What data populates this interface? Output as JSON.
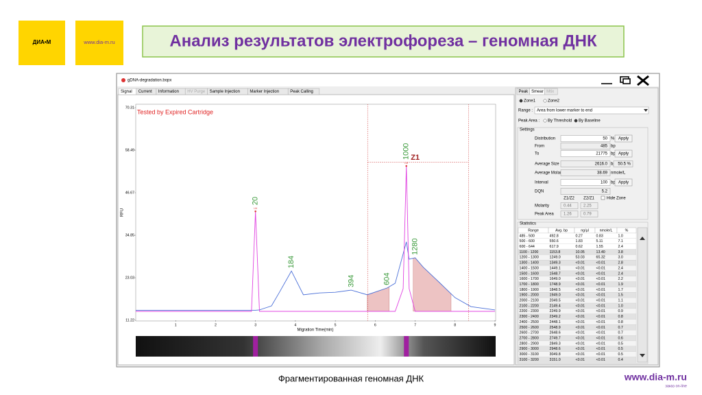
{
  "header": {
    "logo_text": "ДИА•М",
    "logo_url": "www.dia-m.ru",
    "title": "Анализ результатов электрофореза – геномная ДНК"
  },
  "window": {
    "title": "gDNA-degradation.bopx",
    "tabs": [
      "Signal",
      "Current",
      "Information",
      "HV Purge",
      "Sample Injection",
      "Marker Injection",
      "Peak Calling"
    ]
  },
  "chart_data": {
    "type": "line",
    "title": "Tested by Expired Cartridge",
    "x_label": "Migration Time(min)",
    "y_label": "RFU",
    "x": [
      0,
      1,
      2,
      2.9,
      3.0,
      3.1,
      3.4,
      3.6,
      3.9,
      4.2,
      4.6,
      5.0,
      5.4,
      5.8,
      6.3,
      6.5,
      6.7,
      6.78,
      6.85,
      7.0,
      7.2,
      7.6,
      8.0,
      8.4,
      9.0
    ],
    "series": [
      {
        "name": "Sample",
        "color": "#4a6fd8",
        "values": [
          14.0,
          14.0,
          14.0,
          14.0,
          14.0,
          14.1,
          15.2,
          19.0,
          24.9,
          18.3,
          18.8,
          19.0,
          19.6,
          18.3,
          20.2,
          21.5,
          29.7,
          33.0,
          28.2,
          28.6,
          26.0,
          21.8,
          17.5,
          15.0,
          14.1
        ]
      },
      {
        "name": "Marker",
        "color": "#e040e0",
        "values": [
          13.7,
          13.7,
          13.7,
          13.7,
          41.5,
          13.7,
          13.7,
          13.7,
          13.7,
          13.7,
          13.7,
          13.7,
          13.7,
          13.7,
          13.7,
          13.7,
          20.0,
          54.1,
          20.0,
          13.7,
          13.7,
          13.7,
          13.7,
          13.7,
          13.7
        ]
      }
    ],
    "xlim": [
      0,
      9
    ],
    "xticks": [
      1,
      2,
      3,
      4,
      5,
      6,
      7,
      8,
      9
    ],
    "ylim": [
      11.22,
      70.31
    ],
    "yticks": [
      11.22,
      23.03,
      34.85,
      46.67,
      58.49,
      70.31
    ],
    "peaks": [
      {
        "label": "20",
        "x": 3.0,
        "value": 41.5,
        "tag": "LM"
      },
      {
        "label": "184",
        "x": 3.9,
        "value": 24.9
      },
      {
        "label": "394",
        "x": 5.4,
        "value": 19.6
      },
      {
        "label": "604",
        "x": 6.3,
        "value": 20.2
      },
      {
        "label": "1000",
        "x": 6.78,
        "value": 54.1,
        "tag": "LM"
      },
      {
        "label": "1280",
        "x": 7.0,
        "value": 28.6
      }
    ],
    "shaded_ranges": [
      [
        5.8,
        6.35
      ],
      [
        6.95,
        7.9
      ]
    ],
    "zone": {
      "label": "Z1",
      "from": 5.81,
      "to": 8.34,
      "level": 55.2
    }
  },
  "panel": {
    "tabs": [
      "Peak",
      "Smear",
      "Mtix"
    ],
    "zones": [
      "Zone1",
      "Zone2"
    ],
    "range_label": "Range :",
    "range_value": "Area from lower marker to end",
    "peak_area_label": "Peak Area :",
    "peak_area_options": [
      "By Threshold",
      "By Baseline"
    ],
    "settings_title": "Settings",
    "apply": "Apply",
    "fields": [
      {
        "label": "Distribution",
        "value": "50",
        "unit": "%",
        "apply": true
      },
      {
        "label": "From",
        "value": "485",
        "unit": "bp"
      },
      {
        "label": "To",
        "value": "21775",
        "unit": "bp",
        "apply": true
      },
      {
        "label": "Average Size",
        "value": "2616.0",
        "unit": "bp",
        "extra": "50.5 %"
      },
      {
        "label": "Average Molarity",
        "value": "38.69",
        "unit": "nmole/L"
      },
      {
        "label": "Interval",
        "value": "100",
        "unit": "bp",
        "apply": true
      },
      {
        "label": "DQN",
        "value": "5.2"
      }
    ],
    "ratio_headers": [
      "Z1/Z2",
      "Z2/Z1"
    ],
    "hide_zone": "Hide Zone",
    "ratios": [
      {
        "label": "Molarity",
        "values": [
          "0.44",
          "2.25"
        ]
      },
      {
        "label": "Peak Area",
        "values": [
          "1.26",
          "0.79"
        ]
      }
    ]
  },
  "statistics": {
    "title": "Statistics",
    "columns": [
      "Range",
      "Avg. bp",
      "ng/µl",
      "nmole/L",
      "%"
    ],
    "rows": [
      [
        "485 - 500",
        "492.8",
        "0.27",
        "0.83",
        "1.0"
      ],
      [
        "500 - 600",
        "550.6",
        "1.83",
        "5.11",
        "7.1"
      ],
      [
        "600 - 644",
        "617.9",
        "0.62",
        "1.55",
        "2.4"
      ],
      [
        "1100 - 1200",
        "1153.8",
        "10.05",
        "13.40",
        "3.8"
      ],
      [
        "1200 - 1300",
        "1249.0",
        "53.03",
        "65.32",
        "3.0"
      ],
      [
        "1300 - 1400",
        "1349.3",
        "<0.01",
        "<0.01",
        "2.8"
      ],
      [
        "1400 - 1500",
        "1449.1",
        "<0.01",
        "<0.01",
        "2.4"
      ],
      [
        "1500 - 1600",
        "1548.7",
        "<0.01",
        "<0.01",
        "2.4"
      ],
      [
        "1600 - 1700",
        "1649.0",
        "<0.01",
        "<0.01",
        "2.2"
      ],
      [
        "1700 - 1800",
        "1748.9",
        "<0.01",
        "<0.01",
        "1.9"
      ],
      [
        "1800 - 1900",
        "1848.5",
        "<0.01",
        "<0.01",
        "1.7"
      ],
      [
        "1900 - 2000",
        "1949.0",
        "<0.01",
        "<0.01",
        "1.5"
      ],
      [
        "2000 - 2100",
        "2049.5",
        "<0.01",
        "<0.01",
        "1.1"
      ],
      [
        "2100 - 2200",
        "2149.4",
        "<0.01",
        "<0.01",
        "1.0"
      ],
      [
        "2200 - 2300",
        "2249.9",
        "<0.01",
        "<0.01",
        "0.9"
      ],
      [
        "2300 - 2400",
        "2349.2",
        "<0.01",
        "<0.01",
        "0.8"
      ],
      [
        "2400 - 2500",
        "2448.1",
        "<0.01",
        "<0.01",
        "0.8"
      ],
      [
        "2500 - 2600",
        "2548.9",
        "<0.01",
        "<0.01",
        "0.7"
      ],
      [
        "2600 - 2700",
        "2648.6",
        "<0.01",
        "<0.01",
        "0.7"
      ],
      [
        "2700 - 2800",
        "2749.7",
        "<0.01",
        "<0.01",
        "0.6"
      ],
      [
        "2800 - 2900",
        "2849.3",
        "<0.01",
        "<0.01",
        "0.5"
      ],
      [
        "2900 - 3000",
        "2948.6",
        "<0.01",
        "<0.01",
        "0.5"
      ],
      [
        "3000 - 3100",
        "3049.8",
        "<0.01",
        "<0.01",
        "0.5"
      ],
      [
        "3100 - 3200",
        "3151.0",
        "<0.01",
        "<0.01",
        "0.4"
      ]
    ]
  },
  "footer": {
    "caption": "Фрагментированная геномная ДНК",
    "brand": "www.dia-m.ru",
    "brand_sub": "заказ on-line"
  }
}
